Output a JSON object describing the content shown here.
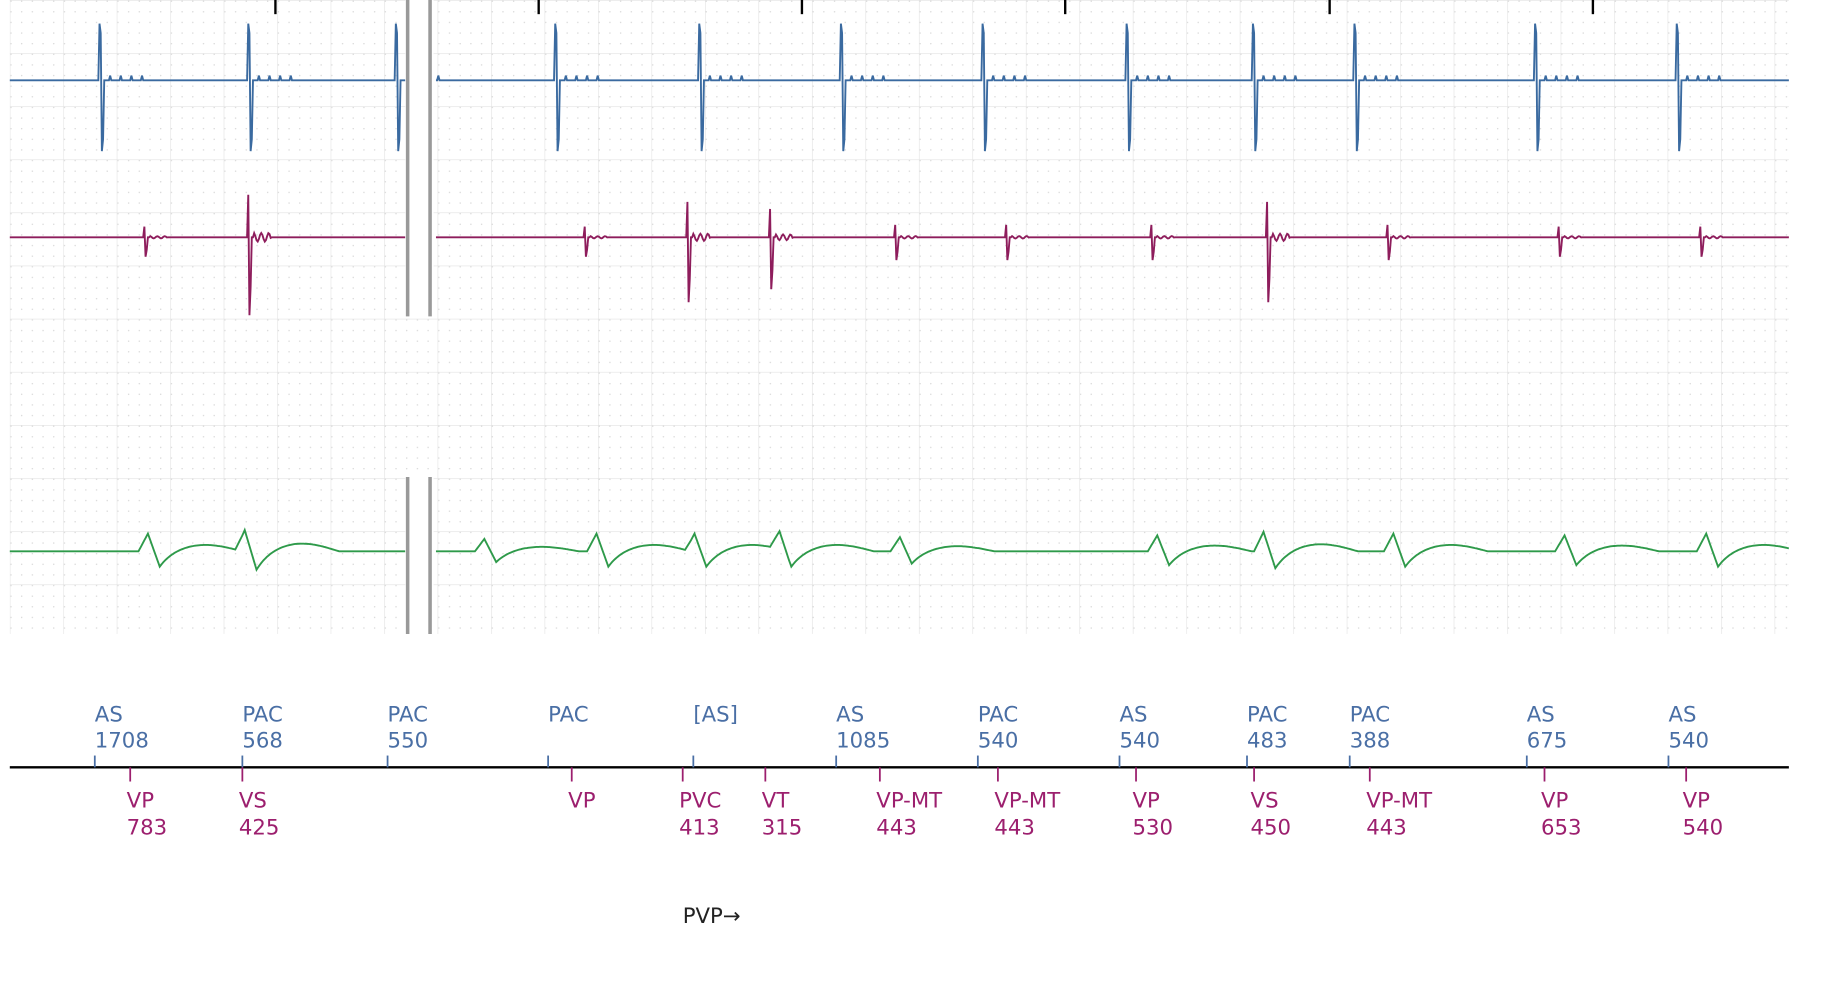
{
  "atrial_markers": [
    {
      "label": "AS",
      "interval": 1708
    },
    {
      "label": "PAC",
      "interval": 568
    },
    {
      "label": "PAC",
      "interval": 550
    },
    {
      "label": "PAC"
    },
    {
      "label": "[AS]"
    },
    {
      "label": "AS",
      "interval": 1085
    },
    {
      "label": "PAC",
      "interval": 540
    },
    {
      "label": "AS",
      "interval": 540
    },
    {
      "label": "PAC",
      "interval": 483
    },
    {
      "label": "PAC",
      "interval": 388
    },
    {
      "label": "AS",
      "interval": 675
    },
    {
      "label": "AS",
      "interval": 540
    }
  ],
  "ventricular_markers": [
    {
      "label": "VP",
      "interval": 783
    },
    {
      "label": "VS",
      "interval": 425
    },
    {
      "label": "VP"
    },
    {
      "label": "PVC",
      "interval": 413
    },
    {
      "label": "VT",
      "interval": 315
    },
    {
      "label": "VP-MT",
      "interval": 443
    },
    {
      "label": "VP-MT",
      "interval": 443
    },
    {
      "label": "VP",
      "interval": 530
    },
    {
      "label": "VS",
      "interval": 450
    },
    {
      "label": "VP-MT",
      "interval": 443
    },
    {
      "label": "VP",
      "interval": 653
    },
    {
      "label": "VP",
      "interval": 540
    }
  ],
  "annotation": "PVP→"
}
